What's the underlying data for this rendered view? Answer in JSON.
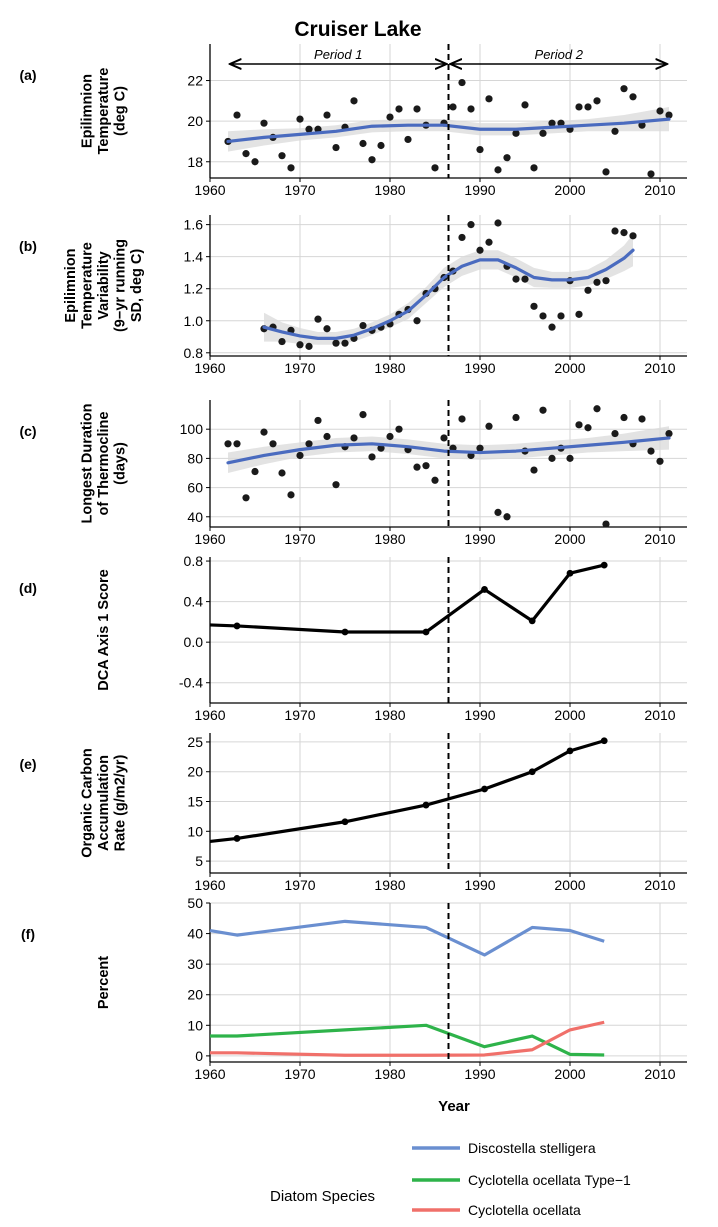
{
  "title": "Cruiser Lake",
  "x_axis_title": "Year",
  "x_ticks": [
    1960,
    1970,
    1980,
    1990,
    2000,
    2010
  ],
  "x_range": [
    1960,
    2013
  ],
  "divider_year": 1986.5,
  "periods": [
    {
      "label": "Period 1",
      "from": 1962,
      "to": 1986.5
    },
    {
      "label": "Period 2",
      "from": 1986.5,
      "to": 2011
    }
  ],
  "legend": {
    "title": "Diatom Species",
    "entries": [
      {
        "label": "Discostella stelligera",
        "color": "#6a8fd0"
      },
      {
        "label": "Cyclotella ocellata Type−1",
        "color": "#2eb34a"
      },
      {
        "label": "Cyclotella ocellata",
        "color": "#f0706a"
      }
    ]
  },
  "chart_data": [
    {
      "id": "a",
      "panel_label": "(a)",
      "type": "scatter",
      "ylabel_lines": [
        "Epilimnion",
        "Temperature",
        "(deg C)"
      ],
      "ylim": [
        17.2,
        23.8
      ],
      "yticks": [
        18,
        20,
        22
      ],
      "points": [
        [
          1962,
          19.0
        ],
        [
          1963,
          20.3
        ],
        [
          1964,
          18.4
        ],
        [
          1965,
          18.0
        ],
        [
          1966,
          19.9
        ],
        [
          1967,
          19.2
        ],
        [
          1968,
          18.3
        ],
        [
          1969,
          17.7
        ],
        [
          1970,
          20.1
        ],
        [
          1971,
          19.6
        ],
        [
          1972,
          19.6
        ],
        [
          1973,
          20.3
        ],
        [
          1974,
          18.7
        ],
        [
          1975,
          19.7
        ],
        [
          1976,
          21.0
        ],
        [
          1977,
          18.9
        ],
        [
          1978,
          18.1
        ],
        [
          1979,
          18.8
        ],
        [
          1980,
          20.2
        ],
        [
          1981,
          20.6
        ],
        [
          1982,
          19.1
        ],
        [
          1983,
          20.6
        ],
        [
          1984,
          19.8
        ],
        [
          1985,
          17.7
        ],
        [
          1986,
          19.9
        ],
        [
          1987,
          20.7
        ],
        [
          1988,
          21.9
        ],
        [
          1989,
          20.6
        ],
        [
          1990,
          18.6
        ],
        [
          1991,
          21.1
        ],
        [
          1992,
          17.6
        ],
        [
          1993,
          18.2
        ],
        [
          1994,
          19.4
        ],
        [
          1995,
          20.8
        ],
        [
          1996,
          17.7
        ],
        [
          1997,
          19.4
        ],
        [
          1998,
          19.9
        ],
        [
          1999,
          19.9
        ],
        [
          2000,
          19.6
        ],
        [
          2001,
          20.7
        ],
        [
          2002,
          20.7
        ],
        [
          2003,
          21.0
        ],
        [
          2004,
          17.5
        ],
        [
          2005,
          19.5
        ],
        [
          2006,
          21.6
        ],
        [
          2007,
          21.2
        ],
        [
          2008,
          19.8
        ],
        [
          2009,
          17.4
        ],
        [
          2010,
          20.5
        ],
        [
          2011,
          20.3
        ]
      ],
      "smooth": [
        [
          1962,
          19.0
        ],
        [
          1966,
          19.2
        ],
        [
          1970,
          19.35
        ],
        [
          1974,
          19.5
        ],
        [
          1978,
          19.75
        ],
        [
          1982,
          19.8
        ],
        [
          1986,
          19.8
        ],
        [
          1990,
          19.6
        ],
        [
          1994,
          19.6
        ],
        [
          1998,
          19.7
        ],
        [
          2002,
          19.8
        ],
        [
          2006,
          19.9
        ],
        [
          2011,
          20.1
        ]
      ],
      "band_width": [
        0.5,
        0.4,
        0.3,
        0.3,
        0.3,
        0.3,
        0.3,
        0.3,
        0.3,
        0.3,
        0.3,
        0.4,
        0.6
      ]
    },
    {
      "id": "b",
      "panel_label": "(b)",
      "type": "scatter",
      "ylabel_lines": [
        "Epilimnion",
        "Temperature",
        "Variability",
        "(9−yr running",
        "SD, deg C)"
      ],
      "ylim": [
        0.78,
        1.66
      ],
      "yticks": [
        0.8,
        1.0,
        1.2,
        1.4,
        1.6
      ],
      "ytick_format": 1,
      "points": [
        [
          1966,
          0.95
        ],
        [
          1967,
          0.96
        ],
        [
          1968,
          0.87
        ],
        [
          1969,
          0.94
        ],
        [
          1970,
          0.85
        ],
        [
          1971,
          0.84
        ],
        [
          1972,
          1.01
        ],
        [
          1973,
          0.95
        ],
        [
          1974,
          0.86
        ],
        [
          1975,
          0.86
        ],
        [
          1976,
          0.89
        ],
        [
          1977,
          0.97
        ],
        [
          1978,
          0.94
        ],
        [
          1979,
          0.96
        ],
        [
          1980,
          0.98
        ],
        [
          1981,
          1.04
        ],
        [
          1982,
          1.07
        ],
        [
          1983,
          1.0
        ],
        [
          1984,
          1.17
        ],
        [
          1985,
          1.2
        ],
        [
          1986,
          1.27
        ],
        [
          1987,
          1.31
        ],
        [
          1988,
          1.52
        ],
        [
          1989,
          1.6
        ],
        [
          1990,
          1.44
        ],
        [
          1991,
          1.49
        ],
        [
          1992,
          1.61
        ],
        [
          1993,
          1.34
        ],
        [
          1994,
          1.26
        ],
        [
          1995,
          1.26
        ],
        [
          1996,
          1.09
        ],
        [
          1997,
          1.03
        ],
        [
          1998,
          0.96
        ],
        [
          1999,
          1.03
        ],
        [
          2000,
          1.25
        ],
        [
          2001,
          1.04
        ],
        [
          2002,
          1.19
        ],
        [
          2003,
          1.24
        ],
        [
          2004,
          1.25
        ],
        [
          2005,
          1.56
        ],
        [
          2006,
          1.55
        ],
        [
          2007,
          1.53
        ]
      ],
      "smooth": [
        [
          1966,
          0.96
        ],
        [
          1968,
          0.93
        ],
        [
          1970,
          0.905
        ],
        [
          1972,
          0.89
        ],
        [
          1974,
          0.89
        ],
        [
          1976,
          0.91
        ],
        [
          1978,
          0.95
        ],
        [
          1980,
          1.0
        ],
        [
          1982,
          1.06
        ],
        [
          1984,
          1.16
        ],
        [
          1986,
          1.27
        ],
        [
          1988,
          1.34
        ],
        [
          1990,
          1.38
        ],
        [
          1992,
          1.38
        ],
        [
          1994,
          1.33
        ],
        [
          1996,
          1.27
        ],
        [
          1998,
          1.255
        ],
        [
          2000,
          1.255
        ],
        [
          2002,
          1.27
        ],
        [
          2004,
          1.32
        ],
        [
          2006,
          1.39
        ],
        [
          2007,
          1.44
        ]
      ],
      "band_width": [
        0.09,
        0.06,
        0.05,
        0.04,
        0.04,
        0.04,
        0.04,
        0.04,
        0.05,
        0.05,
        0.06,
        0.06,
        0.06,
        0.06,
        0.06,
        0.06,
        0.05,
        0.05,
        0.05,
        0.06,
        0.08,
        0.1
      ]
    },
    {
      "id": "c",
      "panel_label": "(c)",
      "type": "scatter",
      "ylabel_lines": [
        "Longest Duration",
        "of Thermocline",
        "(days)"
      ],
      "ylim": [
        33,
        120
      ],
      "yticks": [
        40,
        60,
        80,
        100
      ],
      "points": [
        [
          1962,
          90
        ],
        [
          1963,
          90
        ],
        [
          1964,
          53
        ],
        [
          1965,
          71
        ],
        [
          1966,
          98
        ],
        [
          1967,
          90
        ],
        [
          1968,
          70
        ],
        [
          1969,
          55
        ],
        [
          1970,
          82
        ],
        [
          1971,
          90
        ],
        [
          1972,
          106
        ],
        [
          1973,
          95
        ],
        [
          1974,
          62
        ],
        [
          1975,
          88
        ],
        [
          1976,
          94
        ],
        [
          1977,
          110
        ],
        [
          1978,
          81
        ],
        [
          1979,
          87
        ],
        [
          1980,
          95
        ],
        [
          1981,
          100
        ],
        [
          1982,
          86
        ],
        [
          1983,
          74
        ],
        [
          1984,
          75
        ],
        [
          1985,
          65
        ],
        [
          1986,
          94
        ],
        [
          1987,
          87
        ],
        [
          1988,
          107
        ],
        [
          1989,
          82
        ],
        [
          1990,
          87
        ],
        [
          1991,
          102
        ],
        [
          1992,
          43
        ],
        [
          1993,
          40
        ],
        [
          1994,
          108
        ],
        [
          1995,
          85
        ],
        [
          1996,
          72
        ],
        [
          1997,
          113
        ],
        [
          1998,
          80
        ],
        [
          1999,
          87
        ],
        [
          2000,
          80
        ],
        [
          2001,
          103
        ],
        [
          2002,
          101
        ],
        [
          2003,
          114
        ],
        [
          2004,
          35
        ],
        [
          2005,
          97
        ],
        [
          2006,
          108
        ],
        [
          2007,
          90
        ],
        [
          2008,
          107
        ],
        [
          2009,
          85
        ],
        [
          2010,
          78
        ],
        [
          2011,
          97
        ]
      ],
      "smooth": [
        [
          1962,
          77
        ],
        [
          1966,
          82
        ],
        [
          1970,
          86
        ],
        [
          1974,
          89
        ],
        [
          1978,
          90
        ],
        [
          1982,
          88
        ],
        [
          1986,
          85
        ],
        [
          1990,
          84
        ],
        [
          1994,
          85
        ],
        [
          1998,
          87
        ],
        [
          2002,
          89
        ],
        [
          2006,
          91
        ],
        [
          2011,
          94
        ]
      ],
      "band_width": [
        7,
        6,
        5,
        5,
        5,
        5,
        5,
        5,
        5,
        5,
        5,
        6,
        8
      ]
    },
    {
      "id": "d",
      "panel_label": "(d)",
      "type": "line",
      "ylabel_lines": [
        "DCA Axis 1 Score"
      ],
      "ylim": [
        -0.6,
        0.84
      ],
      "yticks": [
        -0.4,
        0.0,
        0.4,
        0.8
      ],
      "ytick_format": 1,
      "line_color": "#000000",
      "points_shown_from": 1,
      "points": [
        [
          1960,
          0.17
        ],
        [
          1963,
          0.16
        ],
        [
          1975,
          0.1
        ],
        [
          1984,
          0.1
        ],
        [
          1990.5,
          0.52
        ],
        [
          1995.8,
          0.21
        ],
        [
          2000,
          0.68
        ],
        [
          2003.8,
          0.76
        ]
      ]
    },
    {
      "id": "e",
      "panel_label": "(e)",
      "type": "line",
      "ylabel_lines": [
        "Organic Carbon",
        "Accumulation",
        "Rate (g/m2/yr)"
      ],
      "ylim": [
        3,
        26.5
      ],
      "yticks": [
        5,
        10,
        15,
        20,
        25
      ],
      "line_color": "#000000",
      "points_shown_from": 1,
      "points": [
        [
          1960,
          8.3
        ],
        [
          1963,
          8.8
        ],
        [
          1975,
          11.6
        ],
        [
          1984,
          14.4
        ],
        [
          1990.5,
          17.1
        ],
        [
          1995.8,
          20.0
        ],
        [
          2000,
          23.5
        ],
        [
          2003.8,
          25.2
        ]
      ]
    },
    {
      "id": "f",
      "panel_label": "(f)",
      "type": "line",
      "ylabel_lines": [
        "Percent"
      ],
      "ylim": [
        -2,
        50
      ],
      "yticks": [
        0,
        10,
        20,
        30,
        40,
        50
      ],
      "series": [
        {
          "name": "Discostella stelligera",
          "color": "#6a8fd0",
          "points": [
            [
              1960,
              41
            ],
            [
              1963,
              39.5
            ],
            [
              1975,
              44
            ],
            [
              1984,
              42
            ],
            [
              1990.5,
              33
            ],
            [
              1995.8,
              42
            ],
            [
              2000,
              41
            ],
            [
              2003.8,
              37.5
            ]
          ]
        },
        {
          "name": "Cyclotella ocellata Type−1",
          "color": "#2eb34a",
          "points": [
            [
              1960,
              6.5
            ],
            [
              1963,
              6.5
            ],
            [
              1975,
              8.5
            ],
            [
              1984,
              10
            ],
            [
              1990.5,
              3
            ],
            [
              1995.8,
              6.5
            ],
            [
              2000,
              0.5
            ],
            [
              2003.8,
              0.3
            ]
          ]
        },
        {
          "name": "Cyclotella ocellata",
          "color": "#f0706a",
          "points": [
            [
              1960,
              1
            ],
            [
              1963,
              1
            ],
            [
              1975,
              0.2
            ],
            [
              1984,
              0.2
            ],
            [
              1990.5,
              0.3
            ],
            [
              1995.8,
              2
            ],
            [
              2000,
              8.5
            ],
            [
              2003.8,
              11
            ]
          ]
        }
      ]
    }
  ]
}
